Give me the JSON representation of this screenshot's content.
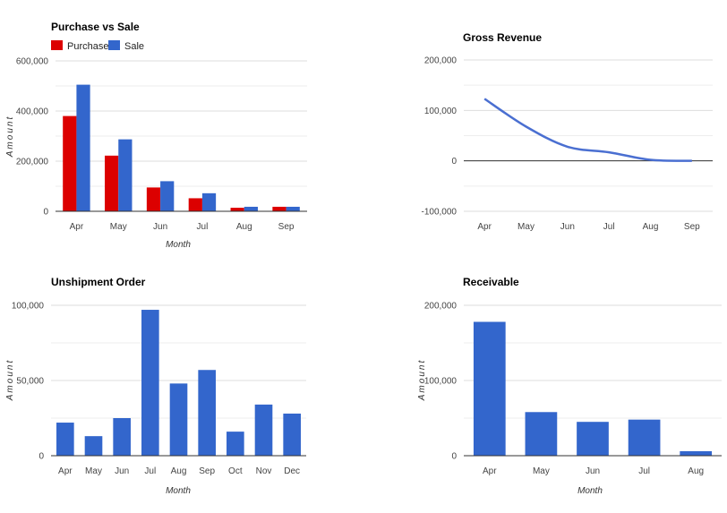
{
  "colors": {
    "purchase": "#dc0000",
    "sale": "#3366cc",
    "line": "#4a6fd1"
  },
  "chart_data": [
    {
      "id": "purchase-vs-sale",
      "type": "bar",
      "title": "Purchase vs Sale",
      "xlabel": "Month",
      "ylabel": "Amount",
      "categories": [
        "Apr",
        "May",
        "Jun",
        "Jul",
        "Aug",
        "Sep"
      ],
      "series": [
        {
          "name": "Purchase",
          "color": "#dc0000",
          "values": [
            380000,
            222000,
            95000,
            52000,
            14000,
            18000
          ]
        },
        {
          "name": "Sale",
          "color": "#3366cc",
          "values": [
            505000,
            287000,
            120000,
            72000,
            18000,
            18000
          ]
        }
      ],
      "ylim": [
        0,
        600000
      ],
      "yticks": [
        "0",
        "200,000",
        "400,000",
        "600,000"
      ],
      "legend": "top-left",
      "grid": true
    },
    {
      "id": "gross-revenue",
      "type": "line",
      "title": "Gross Revenue",
      "xlabel": "",
      "ylabel": "",
      "categories": [
        "Apr",
        "May",
        "Jun",
        "Jul",
        "Aug",
        "Sep"
      ],
      "series": [
        {
          "color": "#4a6fd1",
          "values": [
            123000,
            68000,
            28000,
            17000,
            2000,
            0
          ]
        }
      ],
      "ylim": [
        -100000,
        200000
      ],
      "yticks": [
        "-100,000",
        "0",
        "100,000",
        "200,000"
      ],
      "grid": true
    },
    {
      "id": "unshipment-order",
      "type": "bar",
      "title": "Unshipment Order",
      "xlabel": "Month",
      "ylabel": "Amount",
      "categories": [
        "Apr",
        "May",
        "Jun",
        "Jul",
        "Aug",
        "Sep",
        "Oct",
        "Nov",
        "Dec"
      ],
      "series": [
        {
          "color": "#3366cc",
          "values": [
            22000,
            13000,
            25000,
            97000,
            48000,
            57000,
            16000,
            34000,
            28000
          ]
        }
      ],
      "ylim": [
        0,
        100000
      ],
      "yticks": [
        "0",
        "50,000",
        "100,000"
      ],
      "grid": true
    },
    {
      "id": "receivable",
      "type": "bar",
      "title": "Receivable",
      "xlabel": "Month",
      "ylabel": "Amount",
      "categories": [
        "Apr",
        "May",
        "Jun",
        "Jul",
        "Aug"
      ],
      "series": [
        {
          "color": "#3366cc",
          "values": [
            178000,
            58000,
            45000,
            48000,
            6000
          ]
        }
      ],
      "ylim": [
        0,
        200000
      ],
      "yticks": [
        "0",
        "100,000",
        "200,000"
      ],
      "grid": true
    }
  ]
}
